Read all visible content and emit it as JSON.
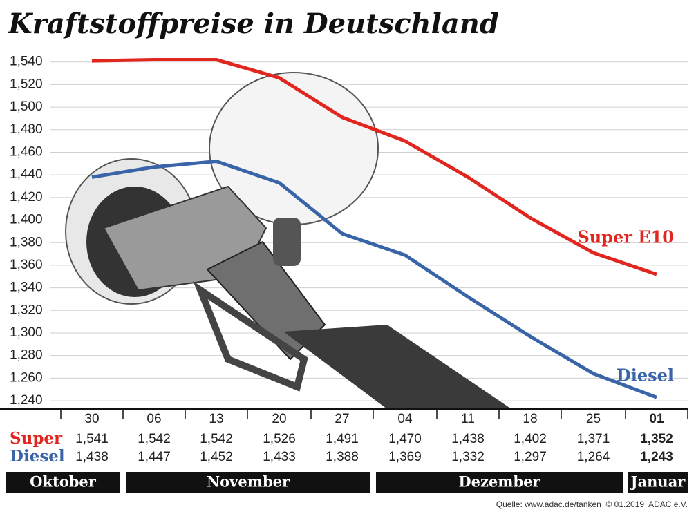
{
  "chart_data": {
    "type": "line",
    "title": "Kraftstoffpreise in Deutschland",
    "categories": [
      "30",
      "06",
      "13",
      "20",
      "27",
      "04",
      "11",
      "18",
      "25",
      "01"
    ],
    "series": [
      {
        "name": "Super E10",
        "color": "#e0261f",
        "values": [
          1.541,
          1.542,
          1.542,
          1.526,
          1.491,
          1.47,
          1.438,
          1.402,
          1.371,
          1.352
        ],
        "value_labels": [
          "1,541",
          "1,542",
          "1,542",
          "1,526",
          "1,491",
          "1,470",
          "1,438",
          "1,402",
          "1,371",
          "1,352"
        ]
      },
      {
        "name": "Diesel",
        "color": "#3a64a8",
        "values": [
          1.438,
          1.447,
          1.452,
          1.433,
          1.388,
          1.369,
          1.332,
          1.297,
          1.264,
          1.243
        ],
        "value_labels": [
          "1,438",
          "1,447",
          "1,452",
          "1,433",
          "1,388",
          "1,369",
          "1,332",
          "1,297",
          "1,264",
          "1,243"
        ]
      }
    ],
    "table_row_labels": [
      "Super",
      "Diesel"
    ],
    "months": [
      "Oktober",
      "November",
      "Dezember",
      "Januar"
    ],
    "ylim": [
      1.2327,
      1.549
    ],
    "yticks": [
      {
        "value": 1.24,
        "label": "1,240"
      },
      {
        "value": 1.26,
        "label": "1,260"
      },
      {
        "value": 1.28,
        "label": "1,280"
      },
      {
        "value": 1.3,
        "label": "1,300"
      },
      {
        "value": 1.32,
        "label": "1,320"
      },
      {
        "value": 1.34,
        "label": "1,340"
      },
      {
        "value": 1.36,
        "label": "1,360"
      },
      {
        "value": 1.38,
        "label": "1,380"
      },
      {
        "value": 1.4,
        "label": "1,400"
      },
      {
        "value": 1.42,
        "label": "1,420"
      },
      {
        "value": 1.44,
        "label": "1,440"
      },
      {
        "value": 1.46,
        "label": "1,460"
      },
      {
        "value": 1.48,
        "label": "1,480"
      },
      {
        "value": 1.5,
        "label": "1,500"
      },
      {
        "value": 1.52,
        "label": "1,520"
      },
      {
        "value": 1.54,
        "label": "1,540"
      }
    ],
    "grid": true,
    "source": "Quelle: www.adac.de/tanken  © 01.2019  ADAC e.V."
  }
}
